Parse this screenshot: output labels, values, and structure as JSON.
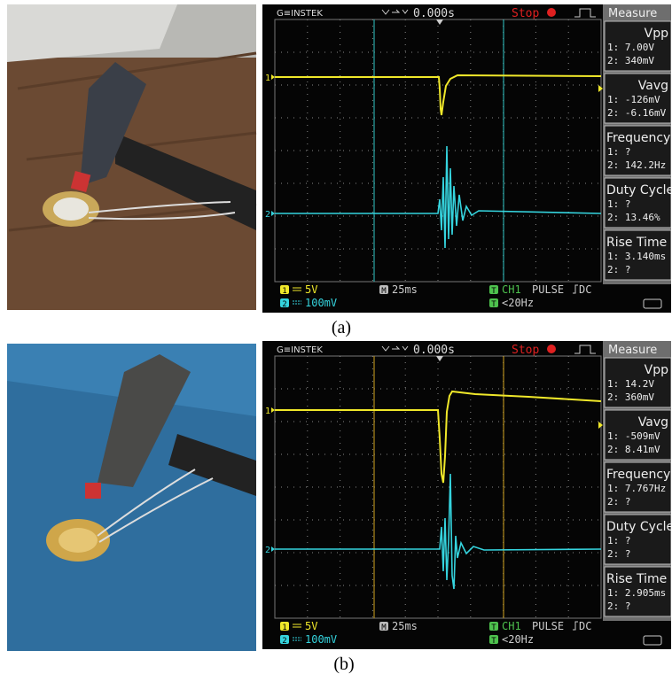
{
  "panels": [
    {
      "caption": "(a)",
      "scope": {
        "brand": "G≡INSTEK",
        "time_offset": "0.000s",
        "status": "Stop",
        "menu_title": "Measure",
        "channels": [
          {
            "label": "1",
            "scale": "5V"
          },
          {
            "label": "2",
            "scale": "100mV"
          }
        ],
        "time_icon": "M",
        "time_scale": "25ms",
        "trigger_icon": "T",
        "trigger_source": "CH1",
        "trigger_type": "PULSE",
        "coupling": "DC",
        "trigger_limit": "<20Hz",
        "measurements": [
          {
            "name": "Vpp",
            "ch1": "1: 7.00V",
            "ch2": "2: 340mV"
          },
          {
            "name": "Vavg",
            "ch1": "1: -126mV",
            "ch2": "2: -6.16mV"
          },
          {
            "name": "Frequency",
            "ch1": "1:   ?",
            "ch2": "2: 142.2Hz"
          },
          {
            "name": "Duty Cycle",
            "ch1": "1:   ?",
            "ch2": "2: 13.46%"
          },
          {
            "name": "Rise Time",
            "ch1": "1: 3.140ms",
            "ch2": "2:   ?"
          }
        ]
      }
    },
    {
      "caption": "(b)",
      "scope": {
        "brand": "G≡INSTEK",
        "time_offset": "0.000s",
        "status": "Stop",
        "menu_title": "Measure",
        "channels": [
          {
            "label": "1",
            "scale": "5V"
          },
          {
            "label": "2",
            "scale": "100mV"
          }
        ],
        "time_icon": "M",
        "time_scale": "25ms",
        "trigger_icon": "T",
        "trigger_source": "CH1",
        "trigger_type": "PULSE",
        "coupling": "DC",
        "trigger_limit": "<20Hz",
        "measurements": [
          {
            "name": "Vpp",
            "ch1": "1: 14.2V",
            "ch2": "2: 360mV"
          },
          {
            "name": "Vavg",
            "ch1": "1: -509mV",
            "ch2": "2: 8.41mV"
          },
          {
            "name": "Frequency",
            "ch1": "1: 7.767Hz",
            "ch2": "2:   ?"
          },
          {
            "name": "Duty Cycle",
            "ch1": "1:   ?",
            "ch2": "2:   ?"
          },
          {
            "name": "Rise Time",
            "ch1": "1: 2.905ms",
            "ch2": "2:   ?"
          }
        ]
      }
    }
  ]
}
